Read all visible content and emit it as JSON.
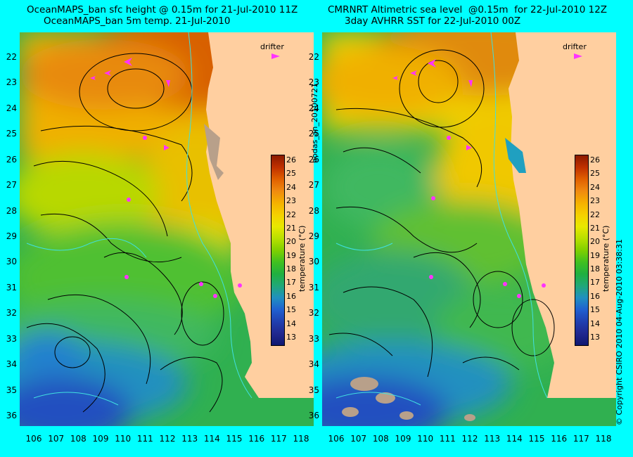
{
  "left_panel": {
    "title_line1": "OceanMAPS_ban sfc height @ 0.15m for 21-Jul-2010 11Z",
    "title_line2": "OceanMAPS_ban 5m temp. 21-Jul-2010"
  },
  "right_panel": {
    "title_line1": "CMRNRT Altimetric sea level  @0.15m  for 22-Jul-2010 12Z",
    "title_line2": "3day AVHRR SST for 22-Jul-2010 00Z"
  },
  "latitude_labels": [
    "22",
    "23",
    "24",
    "25",
    "26",
    "27",
    "28",
    "29",
    "30",
    "31",
    "32",
    "33",
    "34",
    "35",
    "36"
  ],
  "longitude_labels": [
    "106",
    "107",
    "108",
    "109",
    "110",
    "111",
    "112",
    "113",
    "114",
    "115",
    "116",
    "117",
    "118"
  ],
  "colorbar": {
    "ticks": [
      "26",
      "25",
      "24",
      "23",
      "22",
      "21",
      "20",
      "19",
      "18",
      "17",
      "16",
      "15",
      "14",
      "13"
    ],
    "unit_label": "temperature (°C)",
    "colors": [
      "#8b1a00",
      "#c03000",
      "#e06000",
      "#f08a10",
      "#f5b000",
      "#f5d000",
      "#e8e800",
      "#b8e000",
      "#80d000",
      "#40c020",
      "#20b040",
      "#20a878",
      "#2090c0",
      "#2060d0",
      "#2040b0",
      "#202890",
      "#101870"
    ]
  },
  "drifter_label": "drifter",
  "run_label": "bodas_an_20100721",
  "copyright": "© Copyright CSIRO 2010   04-Aug-2010 03:38:31",
  "colors": {
    "background": "#00FFFF",
    "land": "#FFCFA0",
    "island": "#B8A08A",
    "drifter": "#FF33FF",
    "contour": "#000000",
    "isobath": "#40E0E0"
  }
}
